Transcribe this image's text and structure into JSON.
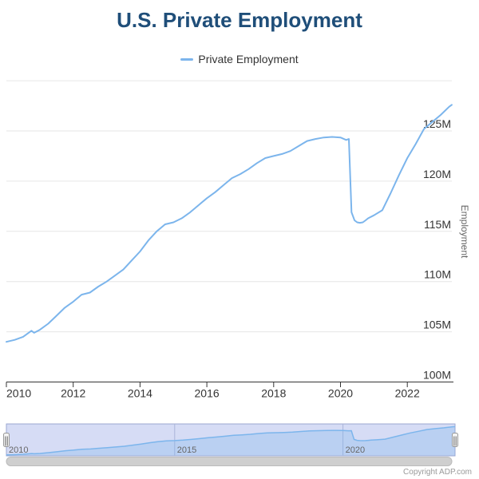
{
  "title": "U.S. Private Employment",
  "legend": {
    "items": [
      {
        "label": "Private Employment",
        "color": "#7cb5ec"
      }
    ]
  },
  "credits": "Copyright ADP.com",
  "colors": {
    "series_line": "#7cb5ec",
    "title_text": "#1f4e79",
    "gridline": "#e6e6e6",
    "axis_line": "#333333",
    "axis_label": "#333333",
    "axis_title": "#666666",
    "navigator_mask_fill": "#d6dcf5",
    "navigator_outline": "#9ba7d1",
    "navigator_gridline": "#aab4d9",
    "navigator_label": "#666666",
    "scrollbar_fill": "#cfcfcf",
    "credits_text": "#999999"
  },
  "chart_data": {
    "type": "line",
    "title": "U.S. Private Employment",
    "xlabel": "",
    "ylabel": "Employment",
    "ylim": [
      100,
      130
    ],
    "xlim": [
      2010,
      2023.33
    ],
    "grid": true,
    "legend_position": "top-center",
    "y_axis": {
      "title": "Employment",
      "side": "right",
      "tick_labels": [
        "100M",
        "105M",
        "110M",
        "115M",
        "120M",
        "125M"
      ],
      "tick_values": [
        100,
        105,
        110,
        115,
        120,
        125
      ],
      "gridline_values": [
        105,
        110,
        115,
        120,
        125,
        130
      ],
      "unit": "millions of employees"
    },
    "x_axis": {
      "tick_labels": [
        "2010",
        "2012",
        "2014",
        "2016",
        "2018",
        "2020",
        "2022"
      ],
      "tick_values": [
        2010,
        2012,
        2014,
        2016,
        2018,
        2020,
        2022
      ],
      "unit": "year"
    },
    "series": [
      {
        "name": "Private Employment",
        "color": "#7cb5ec",
        "x": [
          2010.0,
          2010.25,
          2010.5,
          2010.75,
          2010.83,
          2011.0,
          2011.25,
          2011.5,
          2011.75,
          2012.0,
          2012.25,
          2012.5,
          2012.75,
          2013.0,
          2013.25,
          2013.5,
          2013.75,
          2014.0,
          2014.25,
          2014.5,
          2014.75,
          2015.0,
          2015.25,
          2015.5,
          2015.75,
          2016.0,
          2016.25,
          2016.5,
          2016.75,
          2017.0,
          2017.25,
          2017.5,
          2017.75,
          2018.0,
          2018.25,
          2018.5,
          2018.75,
          2019.0,
          2019.25,
          2019.5,
          2019.75,
          2020.0,
          2020.17,
          2020.25,
          2020.33,
          2020.42,
          2020.5,
          2020.58,
          2020.67,
          2020.75,
          2020.83,
          2021.0,
          2021.25,
          2021.5,
          2021.75,
          2022.0,
          2022.25,
          2022.5,
          2022.75,
          2023.0,
          2023.25,
          2023.33
        ],
        "values": [
          104.0,
          104.2,
          104.5,
          105.1,
          104.9,
          105.2,
          105.8,
          106.6,
          107.4,
          108.0,
          108.7,
          108.9,
          109.5,
          110.0,
          110.6,
          111.2,
          112.1,
          113.0,
          114.1,
          115.0,
          115.7,
          115.9,
          116.3,
          116.9,
          117.6,
          118.3,
          118.9,
          119.6,
          120.3,
          120.7,
          121.2,
          121.8,
          122.3,
          122.5,
          122.7,
          123.0,
          123.5,
          124.0,
          124.2,
          124.35,
          124.4,
          124.35,
          124.1,
          124.2,
          116.9,
          116.1,
          115.9,
          115.85,
          115.9,
          116.1,
          116.3,
          116.6,
          117.1,
          118.8,
          120.6,
          122.3,
          123.7,
          125.2,
          125.9,
          126.6,
          127.4,
          127.6
        ]
      }
    ],
    "navigator": {
      "tick_labels": [
        "2010",
        "2015",
        "2020"
      ],
      "tick_values": [
        2010,
        2015,
        2020
      ],
      "selected_range": "full"
    }
  }
}
